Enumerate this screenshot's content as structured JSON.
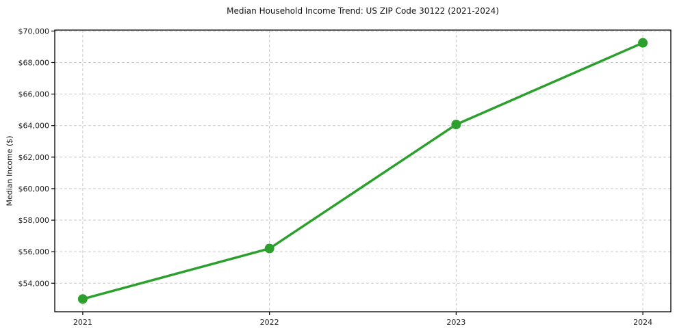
{
  "chart_data": {
    "type": "line",
    "title": "Median Household Income Trend: US ZIP Code 30122 (2021-2024)",
    "xlabel": "",
    "ylabel": "Median Income ($)",
    "x": [
      2021,
      2022,
      2023,
      2024
    ],
    "x_tick_labels": [
      "2021",
      "2022",
      "2023",
      "2024"
    ],
    "series": [
      {
        "name": "Median Household Income",
        "values": [
          53000,
          56200,
          64070,
          69250
        ]
      }
    ],
    "y_ticks": [
      54000,
      56000,
      58000,
      60000,
      62000,
      64000,
      66000,
      68000,
      70000
    ],
    "y_tick_labels": [
      "$54,000",
      "$56,000",
      "$58,000",
      "$60,000",
      "$62,000",
      "$64,000",
      "$66,000",
      "$68,000",
      "$70,000"
    ],
    "xlim": [
      2020.85,
      2024.15
    ],
    "ylim": [
      52190,
      70060
    ],
    "grid": true,
    "legend": "none",
    "colors": {
      "line": "#2ca02c",
      "marker": "#2ca02c",
      "grid": "#c9c9c9",
      "spine": "#000000",
      "text": "#1a1a1a",
      "background": "#ffffff"
    }
  }
}
